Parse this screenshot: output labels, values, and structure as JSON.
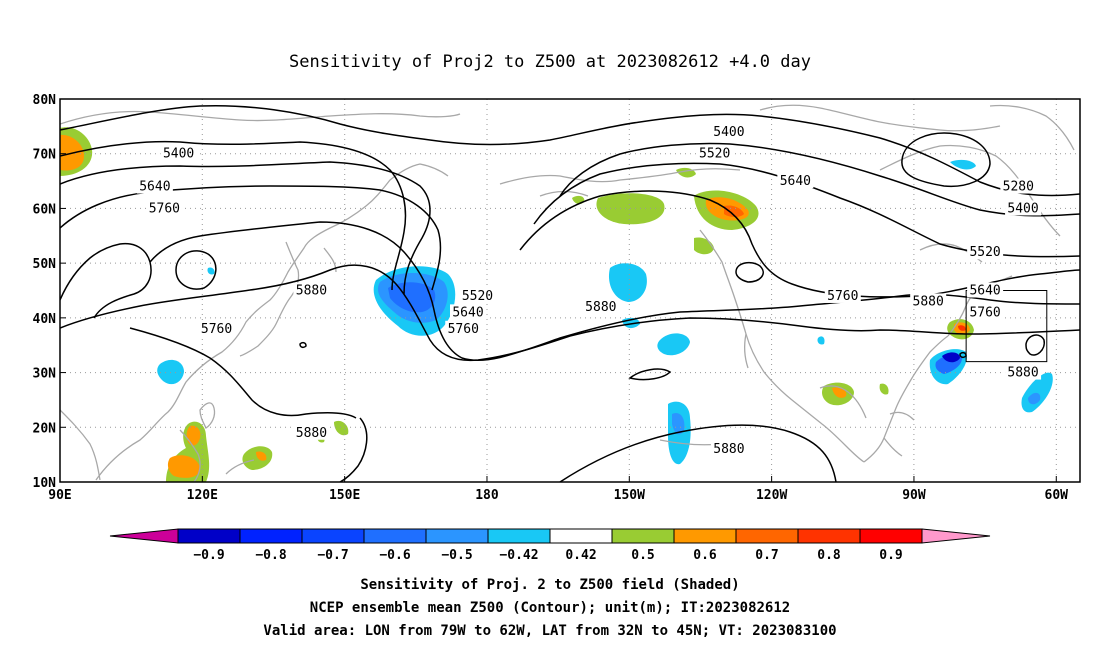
{
  "title": "Sensitivity of Proj2 to Z500 at 2023082612 +4.0 day",
  "map": {
    "lon_range": [
      90,
      305
    ],
    "lat_range": [
      10,
      80
    ],
    "lon_ticks": [
      {
        "lon": 90,
        "label": "90E"
      },
      {
        "lon": 120,
        "label": "120E"
      },
      {
        "lon": 150,
        "label": "150E"
      },
      {
        "lon": 180,
        "label": "180"
      },
      {
        "lon": 210,
        "label": "150W"
      },
      {
        "lon": 240,
        "label": "120W"
      },
      {
        "lon": 270,
        "label": "90W"
      },
      {
        "lon": 300,
        "label": "60W"
      }
    ],
    "lat_ticks": [
      {
        "lat": 10,
        "label": "10N"
      },
      {
        "lat": 20,
        "label": "20N"
      },
      {
        "lat": 30,
        "label": "30N"
      },
      {
        "lat": 40,
        "label": "40N"
      },
      {
        "lat": 50,
        "label": "50N"
      },
      {
        "lat": 60,
        "label": "60N"
      },
      {
        "lat": 70,
        "label": "70N"
      },
      {
        "lat": 80,
        "label": "80N"
      }
    ],
    "grid": "dotted",
    "valid_box": {
      "lon_from": 281,
      "lon_to": 298,
      "lat_from": 32,
      "lat_to": 45
    },
    "contour_labels": [
      {
        "text": "5400",
        "lon": 115,
        "lat": 70
      },
      {
        "text": "5640",
        "lon": 110,
        "lat": 64
      },
      {
        "text": "5760",
        "lon": 112,
        "lat": 60
      },
      {
        "text": "5880",
        "lon": 143,
        "lat": 45
      },
      {
        "text": "5760",
        "lon": 123,
        "lat": 38
      },
      {
        "text": "5880",
        "lon": 143,
        "lat": 19
      },
      {
        "text": "5520",
        "lon": 178,
        "lat": 44
      },
      {
        "text": "5640",
        "lon": 176,
        "lat": 41
      },
      {
        "text": "5760",
        "lon": 175,
        "lat": 38
      },
      {
        "text": "5400",
        "lon": 231,
        "lat": 74
      },
      {
        "text": "5520",
        "lon": 228,
        "lat": 70
      },
      {
        "text": "5640",
        "lon": 245,
        "lat": 65
      },
      {
        "text": "5880",
        "lon": 204,
        "lat": 42
      },
      {
        "text": "5760",
        "lon": 255,
        "lat": 44
      },
      {
        "text": "5880",
        "lon": 273,
        "lat": 43
      },
      {
        "text": "5280",
        "lon": 292,
        "lat": 64
      },
      {
        "text": "5400",
        "lon": 293,
        "lat": 60
      },
      {
        "text": "5520",
        "lon": 285,
        "lat": 52
      },
      {
        "text": "5640",
        "lon": 285,
        "lat": 45
      },
      {
        "text": "5760",
        "lon": 285,
        "lat": 41
      },
      {
        "text": "5880",
        "lon": 293,
        "lat": 30
      },
      {
        "text": "5880",
        "lon": 231,
        "lat": 16
      }
    ]
  },
  "colorbar": {
    "labels": [
      "−0.9",
      "−0.8",
      "−0.7",
      "−0.6",
      "−0.5",
      "−0.42",
      "0.42",
      "0.5",
      "0.6",
      "0.7",
      "0.8",
      "0.9"
    ],
    "colors": [
      "#0000c8",
      "#0022ff",
      "#0a44ff",
      "#1f6fff",
      "#2b95ff",
      "#19c8f5",
      "#ffffff",
      "#99cc33",
      "#ff9900",
      "#ff6600",
      "#ff3300",
      "#ff0000"
    ],
    "left_end_color": "#cc0099",
    "right_end_color": "#ff99cc"
  },
  "notes": [
    "Sensitivity of Proj. 2 to Z500 field (Shaded)",
    "NCEP ensemble mean Z500 (Contour); unit(m); IT:2023082612",
    "Valid area: LON from 79W to 62W, LAT from 32N to 45N; VT: 2023083100"
  ]
}
